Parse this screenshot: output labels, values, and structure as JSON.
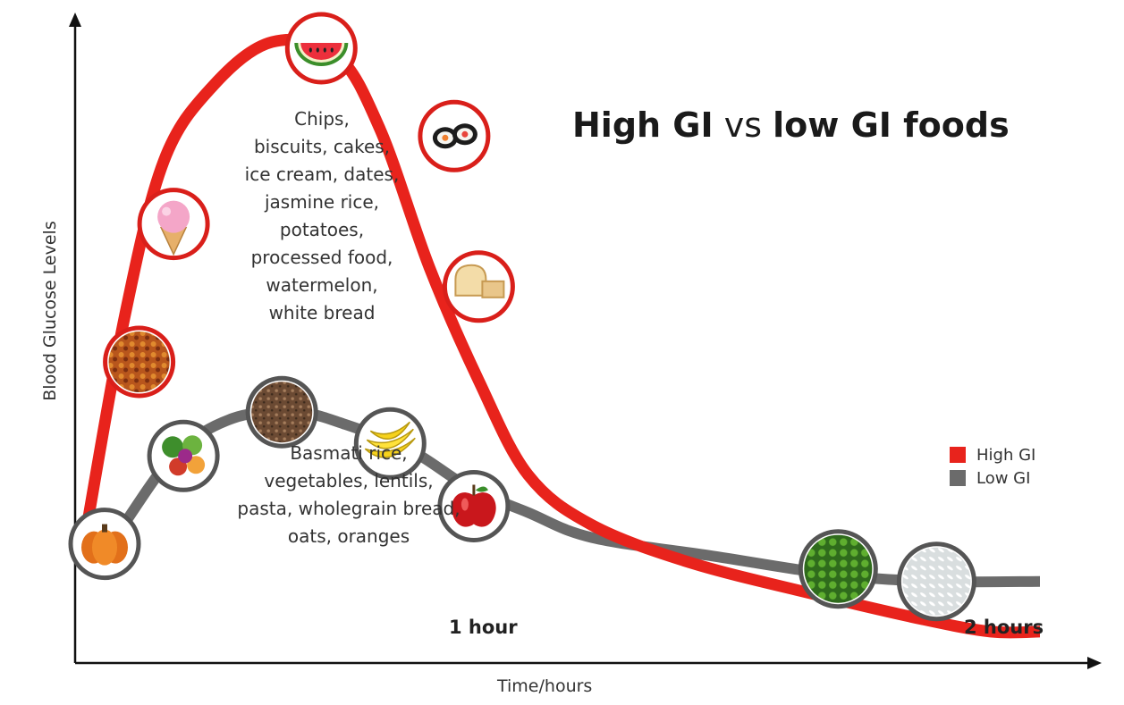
{
  "chart_data": {
    "type": "line",
    "title_parts": {
      "a": "High GI",
      "b": "vs",
      "c": "low GI foods"
    },
    "xlabel": "Time/hours",
    "ylabel": "Blood Glucose Levels",
    "x_ticks": [
      {
        "x": 1,
        "label": "1 hour"
      },
      {
        "x": 2,
        "label": "2 hours"
      }
    ],
    "xlim": [
      0,
      2
    ],
    "ylim": [
      0,
      100
    ],
    "grid": false,
    "legend_position": "right",
    "series": [
      {
        "name": "High GI",
        "color": "#e8231c",
        "x": [
          0.02,
          0.1,
          0.18,
          0.28,
          0.4,
          0.53,
          0.62,
          0.72,
          0.82,
          0.92,
          1.05,
          1.25,
          1.5,
          1.72,
          1.86,
          1.96
        ],
        "y": [
          20,
          55,
          80,
          92,
          99,
          97,
          85,
          63,
          45,
          30,
          22,
          16,
          11,
          7,
          5,
          5
        ],
        "annotation_lines": [
          "Chips,",
          "biscuits, cakes,",
          "ice cream, dates,",
          "jasmine rice,",
          "potatoes,",
          "processed food,",
          "watermelon,",
          "white bread"
        ],
        "markers": [
          {
            "x": 0.13,
            "y": 48,
            "icon": "mixed-fried-food-icon"
          },
          {
            "x": 0.2,
            "y": 70,
            "icon": "ice-cream-icon"
          },
          {
            "x": 0.5,
            "y": 98,
            "icon": "watermelon-icon"
          },
          {
            "x": 0.77,
            "y": 84,
            "icon": "sushi-icon"
          },
          {
            "x": 0.82,
            "y": 60,
            "icon": "white-bread-icon"
          }
        ]
      },
      {
        "name": "Low GI",
        "color": "#6b6b6b",
        "x": [
          0.02,
          0.08,
          0.2,
          0.32,
          0.45,
          0.55,
          0.68,
          0.8,
          0.92,
          1.05,
          1.3,
          1.55,
          1.75,
          1.96
        ],
        "y": [
          15,
          20,
          33,
          39,
          40,
          38,
          34,
          28,
          24,
          20,
          17,
          14,
          13,
          13
        ],
        "annotation_lines": [
          "Basmati rice,",
          "vegetables, lentils,",
          "pasta, wholegrain bread,",
          "oats, oranges"
        ],
        "markers": [
          {
            "x": 0.06,
            "y": 19,
            "icon": "pumpkin-icon"
          },
          {
            "x": 0.22,
            "y": 33,
            "icon": "vegetables-icon"
          },
          {
            "x": 0.42,
            "y": 40,
            "icon": "wholegrain-bread-icon"
          },
          {
            "x": 0.64,
            "y": 35,
            "icon": "bananas-icon"
          },
          {
            "x": 0.81,
            "y": 25,
            "icon": "apple-icon"
          },
          {
            "x": 1.55,
            "y": 15,
            "icon": "peas-icon"
          },
          {
            "x": 1.75,
            "y": 13,
            "icon": "basmati-rice-icon"
          }
        ]
      }
    ]
  }
}
